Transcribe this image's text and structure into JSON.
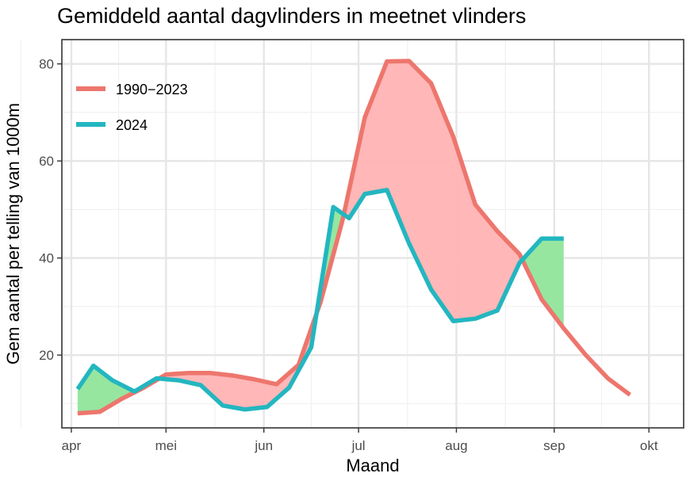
{
  "chart_data": {
    "type": "line",
    "title": "Gemiddeld aantal dagvlinders in meetnet vlinders",
    "xlabel": "Maand",
    "ylabel": "Gem aantal per telling van 1000m",
    "x_ticks": [
      "apr",
      "mei",
      "jun",
      "jul",
      "aug",
      "sep",
      "okt"
    ],
    "y_ticks": [
      20,
      40,
      60,
      80
    ],
    "ylim": [
      5,
      85
    ],
    "grid": true,
    "legend_position": "top-left",
    "fill_colors": {
      "historic_above": "#ffb3b3",
      "current_above": "#90e59b"
    },
    "series": [
      {
        "name": "1990−2023",
        "color": "#ed766d",
        "x": [
          "2024-04-03",
          "2024-04-10",
          "2024-04-17",
          "2024-04-24",
          "2024-05-01",
          "2024-05-08",
          "2024-05-15",
          "2024-05-22",
          "2024-05-29",
          "2024-06-05",
          "2024-06-12",
          "2024-06-19",
          "2024-06-26",
          "2024-07-03",
          "2024-07-10",
          "2024-07-17",
          "2024-07-24",
          "2024-07-31",
          "2024-08-07",
          "2024-08-14",
          "2024-08-21",
          "2024-08-28",
          "2024-09-04",
          "2024-09-11",
          "2024-09-18",
          "2024-09-25"
        ],
        "values": [
          8,
          8.3,
          11,
          13.3,
          16,
          16.3,
          16.3,
          15.8,
          15,
          14,
          18,
          31,
          48,
          69,
          80.5,
          80.6,
          76,
          65,
          51,
          45.5,
          40.8,
          31.5,
          25.5,
          20,
          15.2,
          11.8
        ]
      },
      {
        "name": "2024",
        "color": "#23b6c0",
        "x": [
          "2024-04-03",
          "2024-04-08",
          "2024-04-14",
          "2024-04-21",
          "2024-04-28",
          "2024-05-05",
          "2024-05-12",
          "2024-05-19",
          "2024-05-26",
          "2024-06-02",
          "2024-06-09",
          "2024-06-16",
          "2024-06-23",
          "2024-06-28",
          "2024-07-03",
          "2024-07-10",
          "2024-07-17",
          "2024-07-24",
          "2024-07-31",
          "2024-08-07",
          "2024-08-14",
          "2024-08-21",
          "2024-08-28",
          "2024-09-04"
        ],
        "values": [
          13,
          17.8,
          14.8,
          12.5,
          15.2,
          14.8,
          13.8,
          9.6,
          8.8,
          9.3,
          13.3,
          21.6,
          50.5,
          48.2,
          53.2,
          54,
          43,
          33.5,
          27,
          27.5,
          29.2,
          39,
          44,
          44
        ]
      }
    ]
  }
}
